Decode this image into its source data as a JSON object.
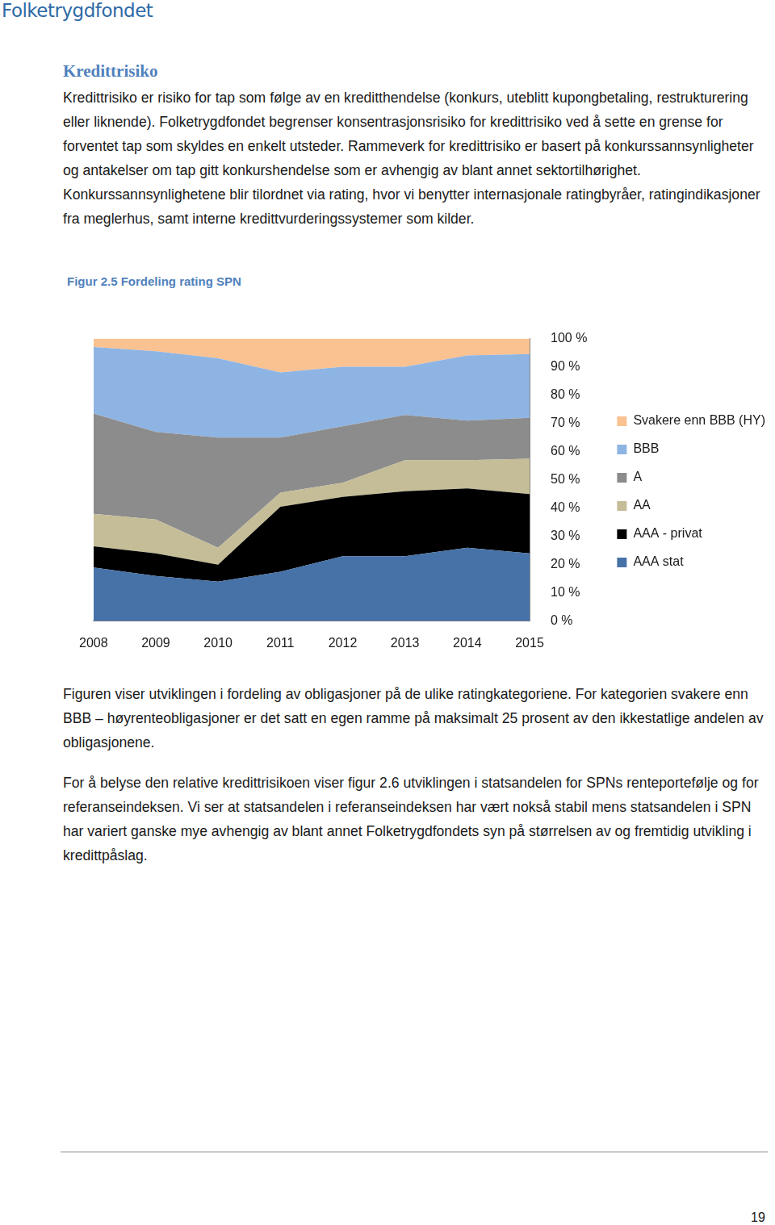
{
  "header": {
    "logo": "Folketrygdfondet"
  },
  "heading": "Kredittrisiko",
  "paragraphs": [
    "Kredittrisiko er risiko for tap som følge av en kreditthendelse (konkurs, uteblitt kupongbetaling, restrukturering eller liknende). Folketrygdfondet begrenser konsentrasjonsrisiko for kredittrisiko ved å sette en grense for forventet tap som skyldes en enkelt utsteder. Rammeverk for kredittrisiko er basert på konkurssannsynligheter og antakelser om tap gitt konkurshendelse som er avhengig av blant annet sektortilhørighet. Konkurssannsynlighetene blir tilordnet via rating, hvor vi benytter internasjonale ratingbyråer, ratingindikasjoner fra meglerhus, samt interne kredittvurderingssystemer som kilder."
  ],
  "figure_caption": "Figur 2.5 Fordeling rating SPN",
  "chart_data": {
    "type": "area",
    "categories": [
      "2008",
      "2009",
      "2010",
      "2011",
      "2012",
      "2013",
      "2014",
      "2015"
    ],
    "series": [
      {
        "name": "AAA stat",
        "color": "#4672a8",
        "values": [
          19,
          16,
          14,
          17.5,
          23,
          23,
          26,
          24
        ]
      },
      {
        "name": "AAA - privat",
        "color": "#000000",
        "values": [
          7.5,
          8,
          6,
          23,
          21,
          23,
          21,
          21
        ]
      },
      {
        "name": "AA",
        "color": "#c4bd97",
        "values": [
          11.5,
          12,
          6,
          5,
          5,
          11,
          10,
          12.5
        ]
      },
      {
        "name": "A",
        "color": "#8c8c8c",
        "values": [
          35.5,
          31,
          39,
          19.5,
          20,
          16,
          14,
          14.5
        ]
      },
      {
        "name": "BBB",
        "color": "#8eb4e3",
        "values": [
          23.5,
          28.5,
          28,
          23,
          21,
          17,
          23,
          22.5
        ]
      },
      {
        "name": "Svakere enn BBB (HY)",
        "color": "#fac191",
        "values": [
          3,
          4.5,
          7,
          12,
          10,
          10,
          6,
          5.5
        ]
      }
    ],
    "ylim": [
      0,
      100
    ],
    "yticks": [
      {
        "value": 0,
        "label": "0 %"
      },
      {
        "value": 10,
        "label": "10 %"
      },
      {
        "value": 20,
        "label": "20 %"
      },
      {
        "value": 30,
        "label": "30 %"
      },
      {
        "value": 40,
        "label": "40 %"
      },
      {
        "value": 50,
        "label": "50 %"
      },
      {
        "value": 60,
        "label": "60 %"
      },
      {
        "value": 70,
        "label": "70 %"
      },
      {
        "value": 80,
        "label": "80 %"
      },
      {
        "value": 90,
        "label": "90 %"
      },
      {
        "value": 100,
        "label": "100 %"
      }
    ],
    "stacked": true,
    "grid": false,
    "legend": "right"
  },
  "after_paragraphs": [
    "Figuren viser utviklingen i fordeling av obligasjoner på de ulike ratingkategoriene. For kategorien svakere enn BBB – høyrenteobligasjoner er det satt en egen ramme på maksimalt 25 prosent av den ikkestatlige andelen av obligasjonene.",
    "For å belyse den relative kredittrisikoen viser figur 2.6 utviklingen i statsandelen for SPNs renteportefølje og for referanseindeksen. Vi ser at statsandelen i referanseindeksen har vært nokså stabil mens statsandelen i SPN har variert ganske mye avhengig av blant annet Folketrygdfondets syn på størrelsen av og fremtidig utvikling i kredittpåslag."
  ],
  "page_number": "19"
}
